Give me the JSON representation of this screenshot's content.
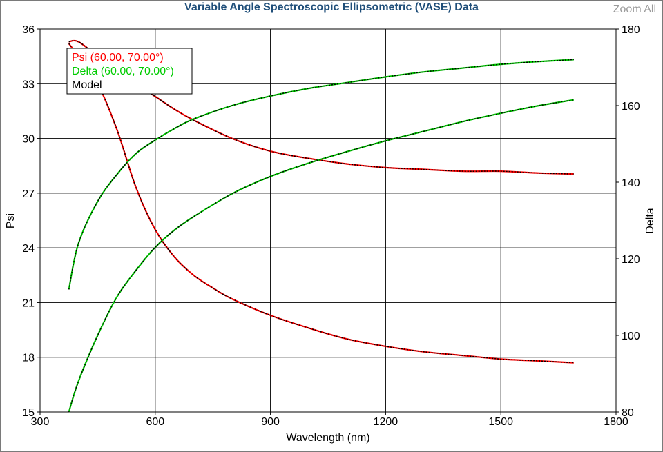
{
  "header": {
    "title": "Variable Angle Spectroscopic Ellipsometric (VASE) Data",
    "zoom_label": "Zoom All"
  },
  "chart_data": {
    "type": "line",
    "title": "Variable Angle Spectroscopic Ellipsometric (VASE) Data",
    "xlabel": "Wavelength (nm)",
    "ylabel_left": "Psi",
    "ylabel_right": "Delta",
    "xlim": [
      300,
      1800
    ],
    "ylim_left": [
      15,
      36
    ],
    "ylim_right": [
      80,
      180
    ],
    "x_ticks": [
      300,
      600,
      900,
      1200,
      1500,
      1800
    ],
    "y_left_ticks": [
      15,
      18,
      21,
      24,
      27,
      30,
      33,
      36
    ],
    "y_right_ticks": [
      80,
      100,
      120,
      140,
      160,
      180
    ],
    "grid": true,
    "legend": {
      "placement": "top-left",
      "entries": [
        {
          "label": "Psi (60.00, 70.00°)",
          "color": "#ff0000"
        },
        {
          "label": "Delta (60.00, 70.00°)",
          "color": "#00cc00"
        },
        {
          "label": "Model",
          "color": "#000000"
        }
      ]
    },
    "series": [
      {
        "axis": "left",
        "color": "#ff0000",
        "x": [
          375,
          400,
          450,
          500,
          550,
          600,
          650,
          700,
          800,
          900,
          1000,
          1100,
          1200,
          1300,
          1400,
          1500,
          1600,
          1690
        ],
        "y": [
          35.3,
          35.3,
          34.5,
          33.6,
          33.0,
          32.3,
          31.6,
          31.0,
          30.0,
          29.3,
          28.9,
          28.6,
          28.4,
          28.3,
          28.2,
          28.2,
          28.1,
          28.05
        ]
      },
      {
        "axis": "left",
        "color": "#ff0000",
        "x": [
          375,
          400,
          450,
          500,
          550,
          600,
          650,
          700,
          750,
          800,
          900,
          1000,
          1100,
          1200,
          1300,
          1400,
          1500,
          1600,
          1690
        ],
        "y": [
          35.2,
          34.5,
          33.0,
          30.5,
          27.3,
          25.0,
          23.5,
          22.5,
          21.8,
          21.2,
          20.3,
          19.6,
          19.0,
          18.6,
          18.3,
          18.1,
          17.9,
          17.8,
          17.7
        ]
      },
      {
        "axis": "right",
        "color": "#00cc00",
        "x": [
          375,
          400,
          450,
          500,
          550,
          600,
          650,
          700,
          800,
          900,
          1000,
          1100,
          1200,
          1300,
          1400,
          1500,
          1600,
          1690
        ],
        "y": [
          112,
          124,
          135,
          142,
          147.5,
          151,
          154,
          156.5,
          160,
          162.5,
          164.5,
          166,
          167.5,
          168.8,
          169.8,
          170.8,
          171.5,
          172
        ]
      },
      {
        "axis": "right",
        "color": "#00cc00",
        "x": [
          375,
          400,
          450,
          500,
          550,
          600,
          650,
          700,
          800,
          900,
          1000,
          1100,
          1200,
          1300,
          1400,
          1500,
          1600,
          1690
        ],
        "y": [
          80,
          88,
          100,
          110,
          117,
          123,
          127.5,
          131,
          137,
          141.5,
          145,
          148,
          150.8,
          153.3,
          155.8,
          158,
          160,
          161.5
        ]
      }
    ]
  }
}
